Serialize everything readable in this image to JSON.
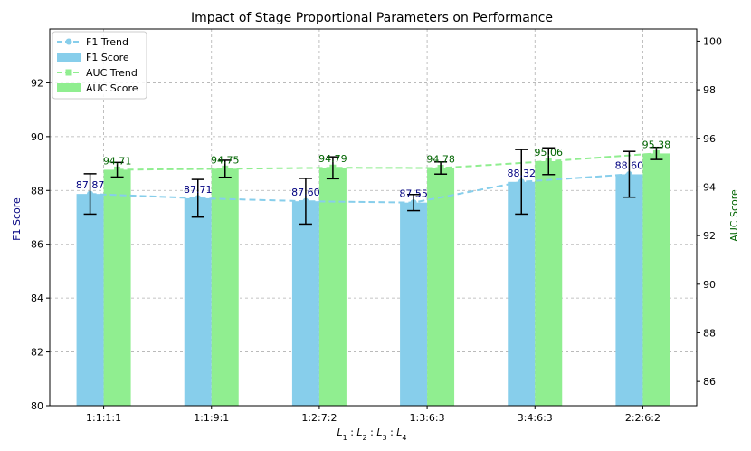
{
  "chart_data": {
    "type": "bar",
    "title": "Impact of Stage Proportional Parameters on Performance",
    "xlabel": "L1 : L2 : L3 : L4",
    "xlabel_parts": [
      "L",
      "1",
      " : ",
      "L",
      "2",
      " : ",
      "L",
      "3",
      " : ",
      "L",
      "4"
    ],
    "ylabel_left": "F1 Score",
    "ylabel_right": "AUC Score",
    "categories": [
      "1:1:1:1",
      "1:1:9:1",
      "1:2:7:2",
      "1:3:6:3",
      "3:4:6:3",
      "2:2:6:2"
    ],
    "y_left_lim": [
      80,
      94
    ],
    "y_left_ticks": [
      80,
      82,
      84,
      86,
      88,
      90,
      92
    ],
    "y_right_lim": [
      85,
      100.5
    ],
    "y_right_ticks": [
      86,
      88,
      90,
      92,
      94,
      96,
      98,
      100
    ],
    "grid": true,
    "legend_position": "top-left",
    "series": [
      {
        "name": "F1 Score",
        "axis": "left",
        "kind": "bar",
        "color": "#87CEEB",
        "values": [
          87.87,
          87.71,
          87.6,
          87.55,
          88.32,
          88.6
        ],
        "labels": [
          "87.87",
          "87.71",
          "87.60",
          "87.55",
          "88.32",
          "88.60"
        ],
        "errors": [
          0.75,
          0.7,
          0.85,
          0.3,
          1.2,
          0.85
        ]
      },
      {
        "name": "AUC Score",
        "axis": "right",
        "kind": "bar",
        "color": "#90EE90",
        "values": [
          94.71,
          94.75,
          94.79,
          94.78,
          95.06,
          95.38
        ],
        "labels": [
          "94.71",
          "94.75",
          "94.79",
          "94.78",
          "95.06",
          "95.38"
        ],
        "errors": [
          0.3,
          0.35,
          0.45,
          0.25,
          0.55,
          0.25
        ]
      },
      {
        "name": "F1 Trend",
        "axis": "left",
        "kind": "line",
        "color": "#87CEEB",
        "marker": "circle",
        "values": [
          87.87,
          87.71,
          87.6,
          87.55,
          88.32,
          88.6
        ]
      },
      {
        "name": "AUC Trend",
        "axis": "right",
        "kind": "line",
        "color": "#90EE90",
        "marker": "square",
        "values": [
          94.71,
          94.75,
          94.79,
          94.78,
          95.06,
          95.38
        ]
      }
    ],
    "legend": [
      "F1 Trend",
      "F1 Score",
      "AUC Trend",
      "AUC Score"
    ],
    "label_colors": {
      "f1": "#000080",
      "auc": "#006400"
    }
  }
}
